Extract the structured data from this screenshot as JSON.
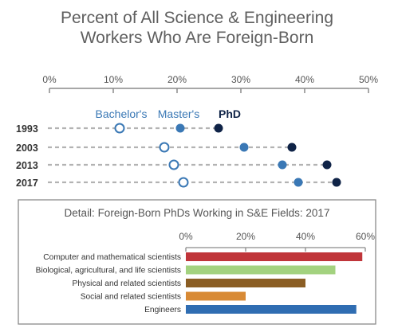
{
  "page": {
    "title_line1": "Percent of All Science & Engineering",
    "title_line2": "Workers Who Are Foreign-Born"
  },
  "colors": {
    "text": "#555555",
    "axis": "#8a8a8a",
    "dash": "#b3b3b3",
    "bachelors": "#3a78b5",
    "masters": "#3a78b5",
    "phd": "#0f2347",
    "bar_computer": "#c0353a",
    "bar_bio": "#a3d27f",
    "bar_physical": "#8b5e24",
    "bar_social": "#d88a35",
    "bar_engineers": "#2f6db2",
    "panel_border": "#8a8a8a"
  },
  "chart_data": [
    {
      "type": "scatter",
      "subtype": "dot-plot",
      "title": "Percent of All Science & Engineering Workers Who Are Foreign-Born",
      "xlim": [
        0,
        50
      ],
      "xticks": [
        "0%",
        "10%",
        "20%",
        "30%",
        "40%",
        "50%"
      ],
      "tick_values": [
        0,
        10,
        20,
        30,
        40,
        50
      ],
      "categories": [
        "1993",
        "2003",
        "2013",
        "2017"
      ],
      "series": [
        {
          "name": "Bachelor's",
          "marker": "open-circle",
          "values": [
            11,
            18,
            19.5,
            21
          ]
        },
        {
          "name": "Master's",
          "marker": "filled-circle",
          "values": [
            20.5,
            30.5,
            36.5,
            39
          ]
        },
        {
          "name": "PhD",
          "marker": "filled-circle",
          "values": [
            26.5,
            38,
            43.5,
            45
          ]
        }
      ],
      "legend_placement": "top-inline",
      "grid": false
    },
    {
      "type": "bar",
      "orientation": "horizontal",
      "title": "Detail: Foreign-Born PhDs Working in S&E Fields: 2017",
      "xlim": [
        0,
        60
      ],
      "xticks": [
        "0%",
        "20%",
        "40%",
        "60%"
      ],
      "tick_values": [
        0,
        20,
        40,
        60
      ],
      "categories": [
        "Computer and mathematical scientists",
        "Biological, agricultural, and life scientists",
        "Physical and related scientists",
        "Social and related scientists",
        "Engineers"
      ],
      "values": [
        59,
        50,
        40,
        20,
        57
      ],
      "grid": false
    }
  ]
}
